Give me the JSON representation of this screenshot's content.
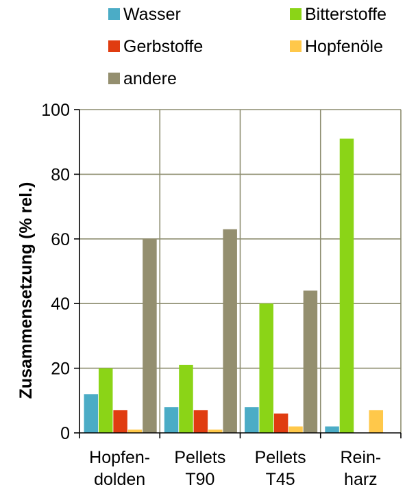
{
  "chart_data": {
    "type": "bar",
    "categories": [
      "Hopfen-\ndolden",
      "Pellets\nT90",
      "Pellets\nT45",
      "Rein-\nharz"
    ],
    "series": [
      {
        "name": "Wasser",
        "color": "#4BACC6",
        "values": [
          12,
          8,
          8,
          2
        ]
      },
      {
        "name": "Gerbstoffe",
        "color": "#E03C10",
        "values": [
          7,
          7,
          6,
          0
        ]
      },
      {
        "name": "andere",
        "color": "#948F6F",
        "values": [
          60,
          63,
          44,
          0
        ]
      },
      {
        "name": "Bitterstoffe",
        "color": "#8BD417",
        "values": [
          20,
          21,
          40,
          91
        ]
      },
      {
        "name": "Hopfenöle",
        "color": "#FFC84A",
        "values": [
          1,
          1,
          2,
          7
        ]
      }
    ],
    "bar_order": [
      "Wasser",
      "Bitterstoffe",
      "Gerbstoffe",
      "Hopfenöle",
      "andere"
    ],
    "ylabel": "Zusammensetzung (% rel.)",
    "xlabel": "",
    "ylim": [
      0,
      100
    ],
    "yticks": [
      0,
      20,
      40,
      60,
      80,
      100
    ],
    "grid": true,
    "legend_position": "top"
  }
}
